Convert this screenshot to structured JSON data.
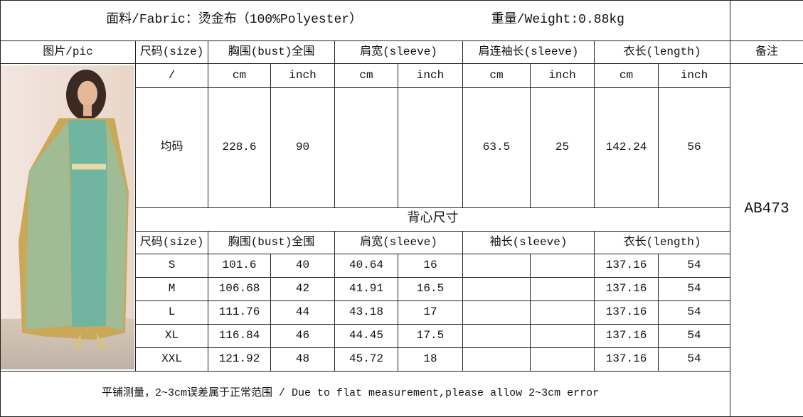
{
  "header": {
    "fabric": "面料/Fabric：烫金布（100%Polyester）",
    "weight": "重量/Weight:0.88kg"
  },
  "columns": {
    "pic": "图片/pic",
    "size": "尺码(size)",
    "bust": "胸围(bust)全围",
    "shoulder": "肩宽(sleeve)",
    "raglan_sleeve": "肩连袖长(sleeve)",
    "length": "衣长(length)",
    "remark": "备注"
  },
  "units": {
    "slash": "/",
    "cm": "cm",
    "inch": "inch"
  },
  "one_size": {
    "size": "均码",
    "bust_cm": "228.6",
    "bust_inch": "90",
    "shoulder_cm": "",
    "shoulder_inch": "",
    "sleeve_cm": "63.5",
    "sleeve_inch": "25",
    "length_cm": "142.24",
    "length_inch": "56"
  },
  "vest": {
    "title": "背心尺寸",
    "columns": {
      "size": "尺码(size)",
      "bust": "胸围(bust)全围",
      "shoulder": "肩宽(sleeve)",
      "sleeve": "袖长(sleeve)",
      "length": "衣长(length)"
    },
    "rows": [
      {
        "size": "S",
        "bust_cm": "101.6",
        "bust_inch": "40",
        "shoulder_cm": "40.64",
        "shoulder_inch": "16",
        "sleeve_cm": "",
        "sleeve_inch": "",
        "length_cm": "137.16",
        "length_inch": "54"
      },
      {
        "size": "M",
        "bust_cm": "106.68",
        "bust_inch": "42",
        "shoulder_cm": "41.91",
        "shoulder_inch": "16.5",
        "sleeve_cm": "",
        "sleeve_inch": "",
        "length_cm": "137.16",
        "length_inch": "54"
      },
      {
        "size": "L",
        "bust_cm": "111.76",
        "bust_inch": "44",
        "shoulder_cm": "43.18",
        "shoulder_inch": "17",
        "sleeve_cm": "",
        "sleeve_inch": "",
        "length_cm": "137.16",
        "length_inch": "54"
      },
      {
        "size": "XL",
        "bust_cm": "116.84",
        "bust_inch": "46",
        "shoulder_cm": "44.45",
        "shoulder_inch": "17.5",
        "sleeve_cm": "",
        "sleeve_inch": "",
        "length_cm": "137.16",
        "length_inch": "54"
      },
      {
        "size": "XXL",
        "bust_cm": "121.92",
        "bust_inch": "48",
        "shoulder_cm": "45.72",
        "shoulder_inch": "18",
        "sleeve_cm": "",
        "sleeve_inch": "",
        "length_cm": "137.16",
        "length_inch": "54"
      }
    ]
  },
  "remark": "AB473",
  "footer": "平铺测量，2~3cm误差属于正常范围 / Due to flat measurement,please allow 2~3cm error",
  "colors": {
    "dress": "#6fb5a0",
    "gold": "#c9a85a"
  }
}
